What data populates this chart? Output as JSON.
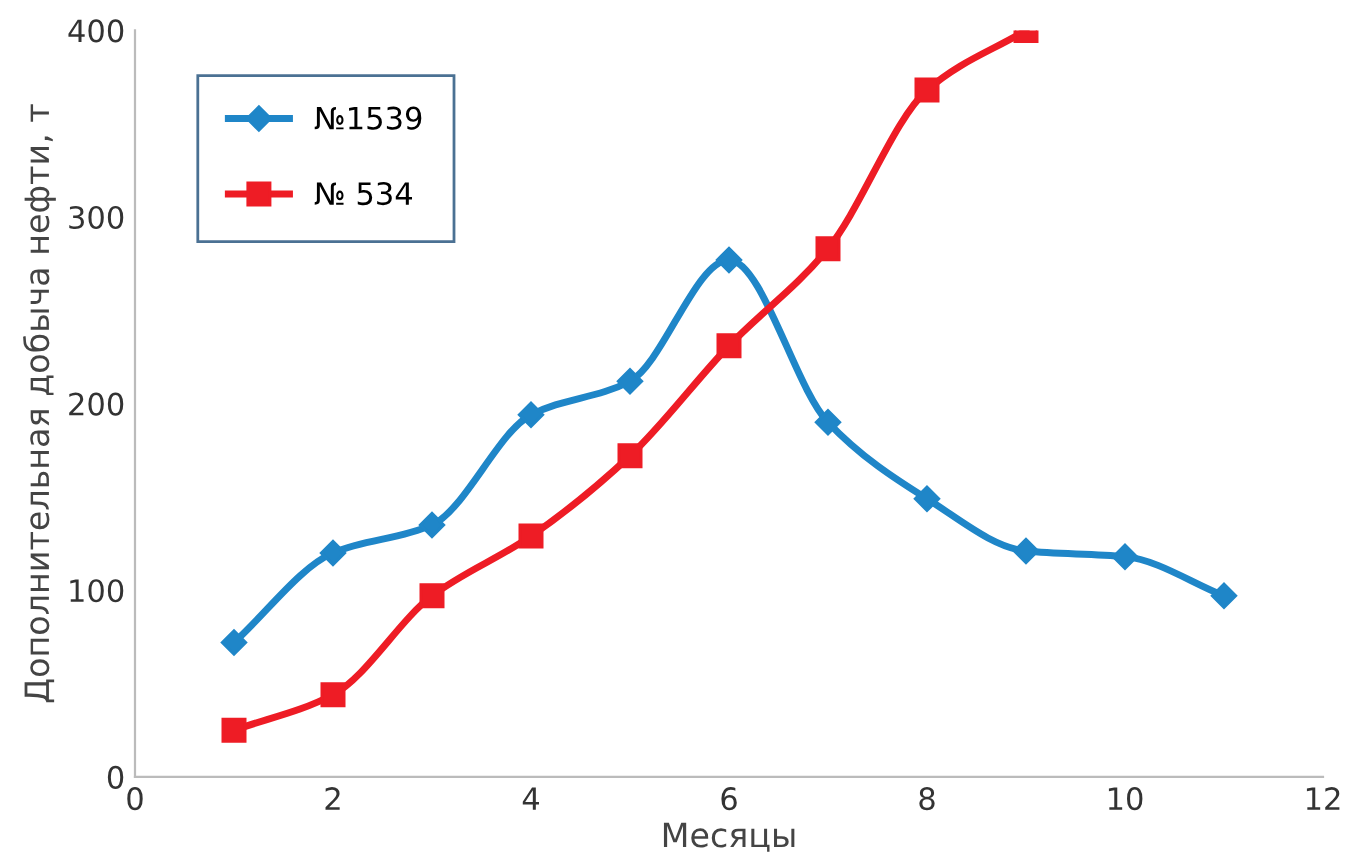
{
  "chart_data": {
    "type": "line",
    "xlabel": "Месяцы",
    "ylabel": "Дополнительная добыча нефти, т",
    "xlim": [
      0,
      12
    ],
    "xticks": [
      0,
      2,
      4,
      6,
      8,
      10,
      12
    ],
    "ylim": [
      0,
      400
    ],
    "yticks": [
      0,
      100,
      200,
      300,
      400
    ],
    "grid": false,
    "legend": "top left",
    "line_style": "solid",
    "series": [
      {
        "name": "№1539",
        "color": "#1f86c8",
        "marker": "diamond",
        "x": [
          1,
          2,
          3,
          4,
          5,
          6,
          7,
          8,
          9,
          10,
          11
        ],
        "values": [
          72,
          120,
          135,
          194,
          212,
          277,
          190,
          149,
          121,
          118,
          97
        ]
      },
      {
        "name": "№ 534",
        "color": "#ee1c25",
        "marker": "square",
        "x": [
          1,
          2,
          3,
          4,
          5,
          6,
          7,
          8,
          9
        ],
        "values": [
          25,
          44,
          97,
          129,
          172,
          231,
          283,
          368,
          400
        ]
      }
    ]
  }
}
